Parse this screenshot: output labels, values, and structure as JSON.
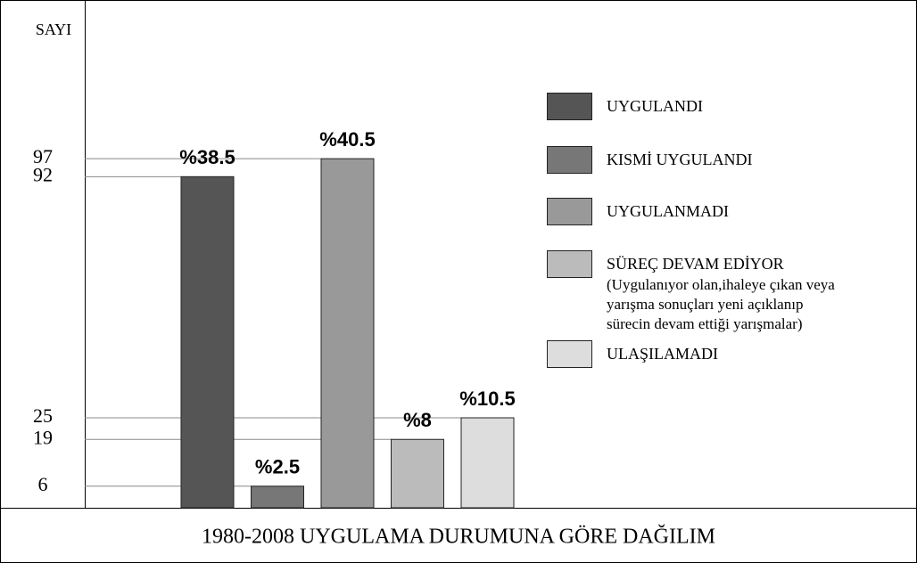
{
  "chart_data": {
    "type": "bar",
    "title": "1980-2008 UYGULAMA DURUMUNA GÖRE DAĞILIM",
    "ylabel": "SAYI",
    "categories": [
      "UYGULANDI",
      "KISMİ UYGULANDI",
      "UYGULANMADI",
      "SÜREÇ DEVAM EDİYOR",
      "ULAŞILAMADI"
    ],
    "values": [
      92,
      6,
      97,
      19,
      25
    ],
    "annotations": [
      "%38.5",
      "%2.5",
      "%40.5",
      "%8",
      "%10.5"
    ],
    "colors": [
      "#555555",
      "#777777",
      "#999999",
      "#bbbbbb",
      "#dddddd"
    ],
    "legend_note": [
      "(Uygulanıyor olan,ihaleye çıkan veya",
      "yarışma sonuçları yeni açıklanıp",
      "sürecin devam ettiği yarışmalar)"
    ],
    "ylim": [
      0,
      100
    ],
    "yticks": [
      6,
      19,
      25,
      92,
      97
    ],
    "grid": true
  }
}
